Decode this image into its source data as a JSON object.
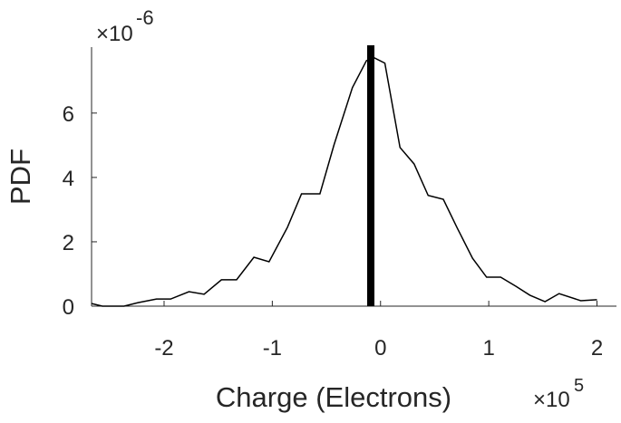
{
  "chart_data": {
    "type": "line",
    "x_label": "Charge (Electrons)",
    "y_label": "PDF",
    "x_multiplier": {
      "base": "×10",
      "power": "5"
    },
    "y_multiplier": {
      "base": "×10",
      "power": "-6"
    },
    "x": [
      -2.67,
      -2.57,
      -2.37,
      -2.24,
      -2.07,
      -1.94,
      -1.77,
      -1.63,
      -1.47,
      -1.33,
      -1.17,
      -1.03,
      -0.86,
      -0.73,
      -0.56,
      -0.43,
      -0.26,
      -0.13,
      -0.06,
      0.04,
      0.18,
      0.31,
      0.44,
      0.58,
      0.71,
      0.85,
      0.98,
      1.11,
      1.25,
      1.38,
      1.52,
      1.65,
      1.85,
      2.0
    ],
    "series": [
      {
        "color": "#000000",
        "values": [
          0.08,
          0,
          0,
          0.11,
          0.22,
          0.22,
          0.45,
          0.37,
          0.82,
          0.82,
          1.52,
          1.38,
          2.45,
          3.49,
          3.49,
          5.01,
          6.79,
          7.63,
          7.72,
          7.55,
          4.93,
          4.42,
          3.44,
          3.32,
          2.42,
          1.49,
          0.9,
          0.9,
          0.62,
          0.34,
          0.14,
          0.39,
          0.17,
          0.2
        ]
      }
    ],
    "vline": {
      "x": -0.09,
      "color": "#000000"
    },
    "xlim": [
      -2.67,
      2.18
    ],
    "ylim": [
      0,
      8.05
    ],
    "xticks": [
      -2,
      -1,
      0,
      1,
      2
    ],
    "yticks": [
      0,
      2,
      4,
      6
    ]
  }
}
